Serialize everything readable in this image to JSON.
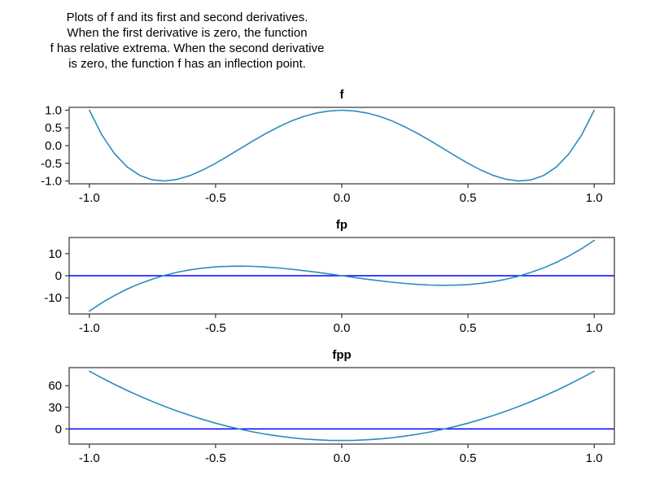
{
  "header": {
    "lines": [
      "Plots of f and its first and second derivatives.",
      "When the first derivative is zero, the function",
      "f has relative extrema. When the second derivative",
      "is zero, the function f has an inflection point."
    ]
  },
  "colors": {
    "series_line": "#2b8cbe",
    "zero_line": "#0000ff",
    "axis": "#333333",
    "text": "#000000"
  },
  "chart_data": [
    {
      "type": "line",
      "title": "f",
      "xlabel": "",
      "ylabel": "",
      "xlim": [
        -1.08,
        1.08
      ],
      "ylim": [
        -1.08,
        1.08
      ],
      "xticks": [
        -1,
        -0.5,
        0,
        0.5,
        1
      ],
      "xtick_labels": [
        "-1.0",
        "-0.5",
        "0.0",
        "0.5",
        "1.0"
      ],
      "yticks": [
        1,
        0.5,
        0,
        -0.5,
        -1
      ],
      "ytick_labels": [
        "1.0",
        "0.5",
        "0.0",
        "-0.5",
        "-1.0"
      ],
      "grid": false,
      "legend": "none",
      "zero_line": false,
      "zero_line_color": "#0000ff",
      "x": [
        -1,
        -0.95,
        -0.9,
        -0.85,
        -0.8,
        -0.75,
        -0.7,
        -0.65,
        -0.6,
        -0.55,
        -0.5,
        -0.45,
        -0.4,
        -0.35,
        -0.3,
        -0.25,
        -0.2,
        -0.15,
        -0.1,
        -0.05,
        0,
        0.05,
        0.1,
        0.15,
        0.2,
        0.25,
        0.3,
        0.35,
        0.4,
        0.45,
        0.5,
        0.55,
        0.6,
        0.65,
        0.7,
        0.75,
        0.8,
        0.85,
        0.9,
        0.95,
        1
      ],
      "series": [
        {
          "name": "f",
          "color": "#2b8cbe",
          "values": [
            1,
            0.296,
            -0.231,
            -0.604,
            -0.843,
            -0.969,
            -0.999,
            -0.952,
            -0.843,
            -0.688,
            -0.5,
            -0.292,
            -0.075,
            0.14,
            0.345,
            0.531,
            0.693,
            0.824,
            0.921,
            0.98,
            1,
            0.98,
            0.921,
            0.824,
            0.693,
            0.531,
            0.345,
            0.14,
            -0.075,
            -0.292,
            -0.5,
            -0.688,
            -0.843,
            -0.952,
            -0.999,
            -0.969,
            -0.843,
            -0.604,
            -0.231,
            0.296,
            1
          ]
        }
      ]
    },
    {
      "type": "line",
      "title": "fp",
      "xlabel": "",
      "ylabel": "",
      "xlim": [
        -1.08,
        1.08
      ],
      "ylim": [
        -17.3,
        17.3
      ],
      "xticks": [
        -1,
        -0.5,
        0,
        0.5,
        1
      ],
      "xtick_labels": [
        "-1.0",
        "-0.5",
        "0.0",
        "0.5",
        "1.0"
      ],
      "yticks": [
        10,
        0,
        -10
      ],
      "ytick_labels": [
        "10",
        "0",
        "-10"
      ],
      "grid": false,
      "legend": "none",
      "zero_line": true,
      "zero_line_color": "#0000ff",
      "x": [
        -1,
        -0.95,
        -0.9,
        -0.85,
        -0.8,
        -0.75,
        -0.7,
        -0.65,
        -0.6,
        -0.55,
        -0.5,
        -0.45,
        -0.4,
        -0.35,
        -0.3,
        -0.25,
        -0.2,
        -0.15,
        -0.1,
        -0.05,
        0,
        0.05,
        0.1,
        0.15,
        0.2,
        0.25,
        0.3,
        0.35,
        0.4,
        0.45,
        0.5,
        0.55,
        0.6,
        0.65,
        0.7,
        0.75,
        0.8,
        0.85,
        0.9,
        0.95,
        1
      ],
      "series": [
        {
          "name": "fp",
          "color": "#2b8cbe",
          "values": [
            -16,
            -12.236,
            -8.928,
            -6.052,
            -3.584,
            -1.5,
            0.224,
            1.612,
            2.688,
            3.476,
            4,
            4.284,
            4.352,
            4.228,
            3.936,
            3.5,
            2.944,
            2.292,
            1.568,
            0.796,
            0,
            -0.796,
            -1.568,
            -2.292,
            -2.944,
            -3.5,
            -3.936,
            -4.228,
            -4.352,
            -4.284,
            -4,
            -3.476,
            -2.688,
            -1.612,
            -0.224,
            1.5,
            3.584,
            6.052,
            8.928,
            12.236,
            16
          ]
        }
      ]
    },
    {
      "type": "line",
      "title": "fpp",
      "xlabel": "",
      "ylabel": "",
      "xlim": [
        -1.08,
        1.08
      ],
      "ylim": [
        -21,
        85
      ],
      "xticks": [
        -1,
        -0.5,
        0,
        0.5,
        1
      ],
      "xtick_labels": [
        "-1.0",
        "-0.5",
        "0.0",
        "0.5",
        "1.0"
      ],
      "yticks": [
        60,
        30,
        0
      ],
      "ytick_labels": [
        "60",
        "30",
        "0"
      ],
      "grid": false,
      "legend": "none",
      "zero_line": true,
      "zero_line_color": "#0000ff",
      "x": [
        -1,
        -0.95,
        -0.9,
        -0.85,
        -0.8,
        -0.75,
        -0.7,
        -0.65,
        -0.6,
        -0.55,
        -0.5,
        -0.45,
        -0.4,
        -0.35,
        -0.3,
        -0.25,
        -0.2,
        -0.15,
        -0.1,
        -0.05,
        0,
        0.05,
        0.1,
        0.15,
        0.2,
        0.25,
        0.3,
        0.35,
        0.4,
        0.45,
        0.5,
        0.55,
        0.6,
        0.65,
        0.7,
        0.75,
        0.8,
        0.85,
        0.9,
        0.95,
        1
      ],
      "series": [
        {
          "name": "fpp",
          "color": "#2b8cbe",
          "values": [
            80,
            70.64,
            61.76,
            53.36,
            45.44,
            38,
            31.04,
            24.56,
            18.56,
            13.04,
            8,
            3.44,
            -0.64,
            -4.24,
            -7.36,
            -10,
            -12.16,
            -13.84,
            -15.04,
            -15.76,
            -16,
            -15.76,
            -15.04,
            -13.84,
            -12.16,
            -10,
            -7.36,
            -4.24,
            -0.64,
            3.44,
            8,
            13.04,
            18.56,
            24.56,
            31.04,
            38,
            45.44,
            53.36,
            61.76,
            70.64,
            80
          ]
        }
      ]
    }
  ]
}
